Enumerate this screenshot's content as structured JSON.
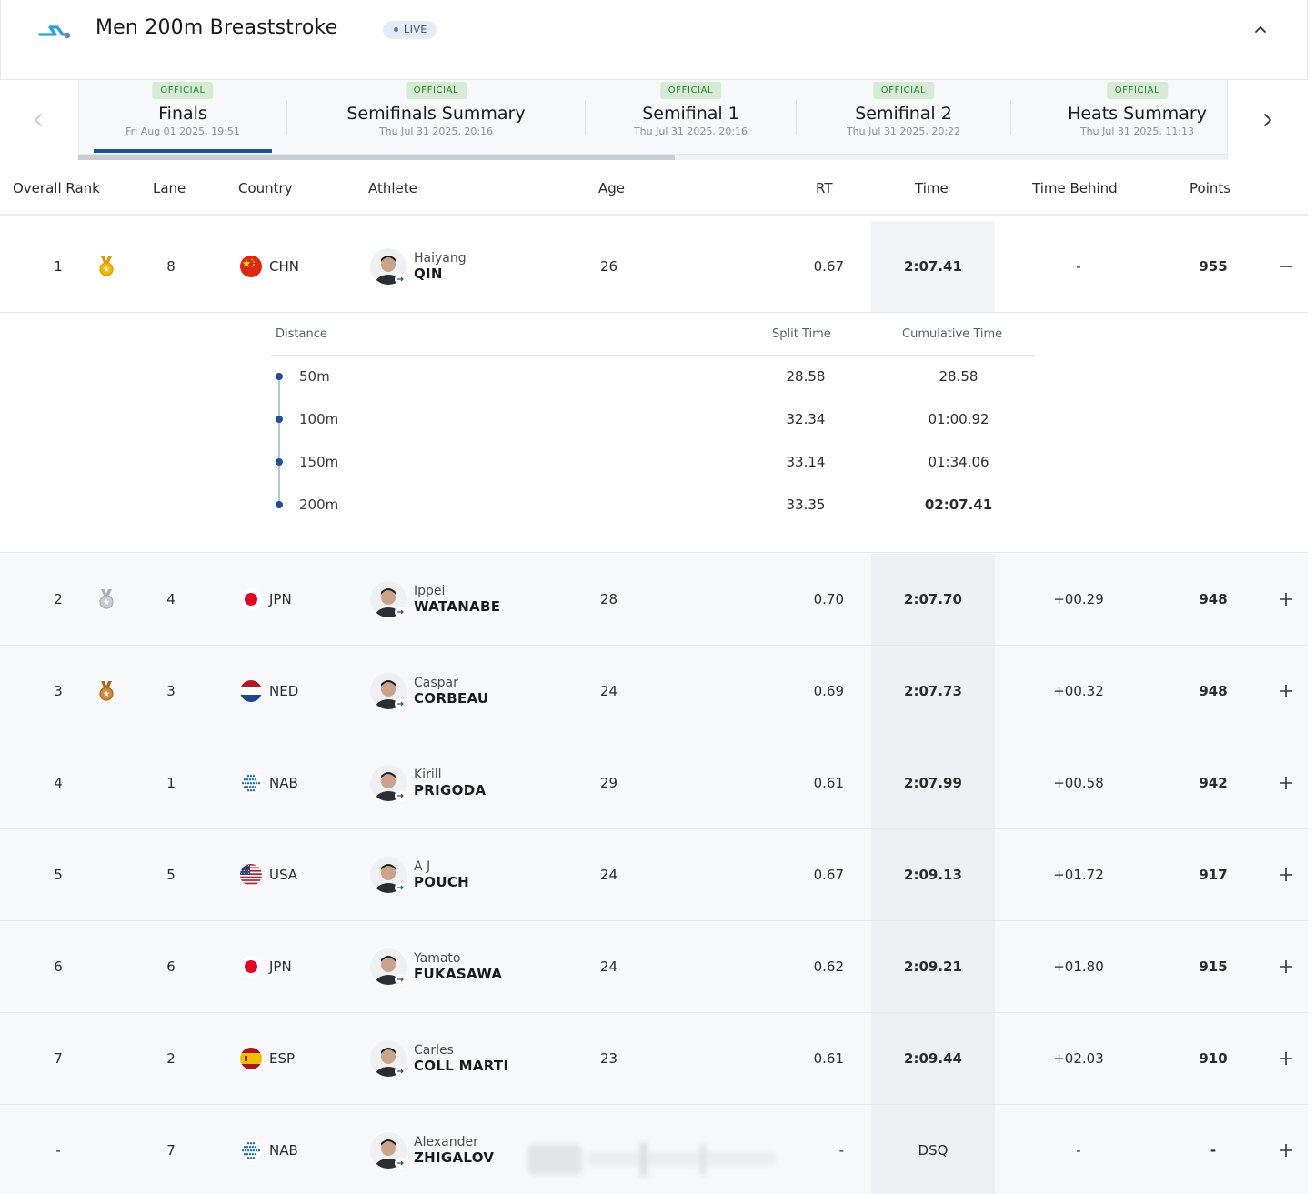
{
  "header": {
    "title": "Men 200m Breaststroke",
    "live_label": "LIVE",
    "accent": "#1e4f99"
  },
  "tabs": [
    {
      "badge": "OFFICIAL",
      "name": "Finals",
      "date": "Fri Aug 01 2025, 19:51",
      "active": true
    },
    {
      "badge": "OFFICIAL",
      "name": "Semifinals Summary",
      "date": "Thu Jul 31 2025, 20:16",
      "active": false
    },
    {
      "badge": "OFFICIAL",
      "name": "Semifinal 1",
      "date": "Thu Jul 31 2025, 20:16",
      "active": false
    },
    {
      "badge": "OFFICIAL",
      "name": "Semifinal 2",
      "date": "Thu Jul 31 2025, 20:22",
      "active": false
    },
    {
      "badge": "OFFICIAL",
      "name": "Heats Summary",
      "date": "Thu Jul 31 2025, 11:13",
      "active": false
    }
  ],
  "columns": {
    "rank": "Overall Rank",
    "lane": "Lane",
    "country": "Country",
    "athlete": "Athlete",
    "age": "Age",
    "rt": "RT",
    "time": "Time",
    "behind": "Time Behind",
    "points": "Points"
  },
  "rows": [
    {
      "rank": "1",
      "medal": "gold",
      "lane": "8",
      "flag": "chn",
      "country": "CHN",
      "first": "Haiyang",
      "last": "QIN",
      "age": "26",
      "rt": "0.67",
      "time": "2:07.41",
      "behind": "-",
      "points": "955",
      "toggle": "minus"
    },
    {
      "rank": "2",
      "medal": "silver",
      "lane": "4",
      "flag": "jpn",
      "country": "JPN",
      "first": "Ippei",
      "last": "WATANABE",
      "age": "28",
      "rt": "0.70",
      "time": "2:07.70",
      "behind": "+00.29",
      "points": "948",
      "toggle": "plus"
    },
    {
      "rank": "3",
      "medal": "bronze",
      "lane": "3",
      "flag": "ned",
      "country": "NED",
      "first": "Caspar",
      "last": "CORBEAU",
      "age": "24",
      "rt": "0.69",
      "time": "2:07.73",
      "behind": "+00.32",
      "points": "948",
      "toggle": "plus"
    },
    {
      "rank": "4",
      "medal": "",
      "lane": "1",
      "flag": "nab",
      "country": "NAB",
      "first": "Kirill",
      "last": "PRIGODA",
      "age": "29",
      "rt": "0.61",
      "time": "2:07.99",
      "behind": "+00.58",
      "points": "942",
      "toggle": "plus"
    },
    {
      "rank": "5",
      "medal": "",
      "lane": "5",
      "flag": "usa",
      "country": "USA",
      "first": "A J",
      "last": "POUCH",
      "age": "24",
      "rt": "0.67",
      "time": "2:09.13",
      "behind": "+01.72",
      "points": "917",
      "toggle": "plus"
    },
    {
      "rank": "6",
      "medal": "",
      "lane": "6",
      "flag": "jpn",
      "country": "JPN",
      "first": "Yamato",
      "last": "FUKASAWA",
      "age": "24",
      "rt": "0.62",
      "time": "2:09.21",
      "behind": "+01.80",
      "points": "915",
      "toggle": "plus"
    },
    {
      "rank": "7",
      "medal": "",
      "lane": "2",
      "flag": "esp",
      "country": "ESP",
      "first": "Carles",
      "last": "COLL MARTI",
      "age": "23",
      "rt": "0.61",
      "time": "2:09.44",
      "behind": "+02.03",
      "points": "910",
      "toggle": "plus"
    },
    {
      "rank": "-",
      "medal": "",
      "lane": "7",
      "flag": "nab",
      "country": "NAB",
      "first": "Alexander",
      "last": "ZHIGALOV",
      "age": "",
      "rt": "-",
      "time": "DSQ",
      "behind": "-",
      "points": "-",
      "toggle": "plus"
    }
  ],
  "splits": {
    "headers": {
      "distance": "Distance",
      "split": "Split Time",
      "cumulative": "Cumulative Time"
    },
    "rows": [
      {
        "distance": "50m",
        "split": "28.58",
        "cumulative": "28.58"
      },
      {
        "distance": "100m",
        "split": "32.34",
        "cumulative": "01:00.92"
      },
      {
        "distance": "150m",
        "split": "33.14",
        "cumulative": "01:34.06"
      },
      {
        "distance": "200m",
        "split": "33.35",
        "cumulative": "02:07.41"
      }
    ]
  }
}
